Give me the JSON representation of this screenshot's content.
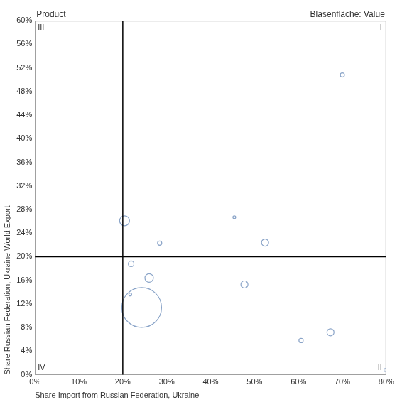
{
  "chart_data": {
    "type": "bubble",
    "title": "Product",
    "size_label": "Blasenfläche: Value",
    "x_label": "Share Import from Russian Federation, Ukraine",
    "y_label": "Share Russian Federation, Ukraine World Export",
    "x": [
      70.0,
      20.4,
      45.4,
      28.4,
      52.4,
      21.9,
      26.0,
      47.7,
      21.7,
      24.3,
      60.6,
      67.3,
      79.8
    ],
    "values": [
      50.8,
      26.1,
      26.7,
      22.3,
      22.4,
      18.8,
      16.4,
      15.3,
      13.6,
      11.4,
      5.8,
      7.2,
      0.8
    ],
    "sizes": [
      9,
      49,
      4,
      9,
      25,
      16,
      36,
      25,
      4,
      784,
      9,
      25,
      4
    ],
    "color": "#8aa4c8",
    "xlim": [
      0,
      80
    ],
    "ylim": [
      0,
      60
    ],
    "xticks": [
      {
        "value": 0,
        "label": "0%"
      },
      {
        "value": 10,
        "label": "10%"
      },
      {
        "value": 20,
        "label": "20%"
      },
      {
        "value": 30,
        "label": "30%"
      },
      {
        "value": 40,
        "label": "40%"
      },
      {
        "value": 50,
        "label": "50%"
      },
      {
        "value": 60,
        "label": "60%"
      },
      {
        "value": 70,
        "label": "70%"
      },
      {
        "value": 80,
        "label": "80%"
      }
    ],
    "yticks": [
      {
        "value": 0,
        "label": "0%"
      },
      {
        "value": 4,
        "label": "4%"
      },
      {
        "value": 8,
        "label": "8%"
      },
      {
        "value": 12,
        "label": "12%"
      },
      {
        "value": 16,
        "label": "16%"
      },
      {
        "value": 20,
        "label": "20%"
      },
      {
        "value": 24,
        "label": "24%"
      },
      {
        "value": 28,
        "label": "28%"
      },
      {
        "value": 32,
        "label": "32%"
      },
      {
        "value": 36,
        "label": "36%"
      },
      {
        "value": 40,
        "label": "40%"
      },
      {
        "value": 44,
        "label": "44%"
      },
      {
        "value": 48,
        "label": "48%"
      },
      {
        "value": 52,
        "label": "52%"
      },
      {
        "value": 56,
        "label": "56%"
      },
      {
        "value": 60,
        "label": "60%"
      }
    ],
    "quadrant_lines": {
      "x": 20,
      "y": 20
    },
    "quadrant_labels": [
      "I",
      "II",
      "III",
      "IV"
    ],
    "grid": false
  }
}
